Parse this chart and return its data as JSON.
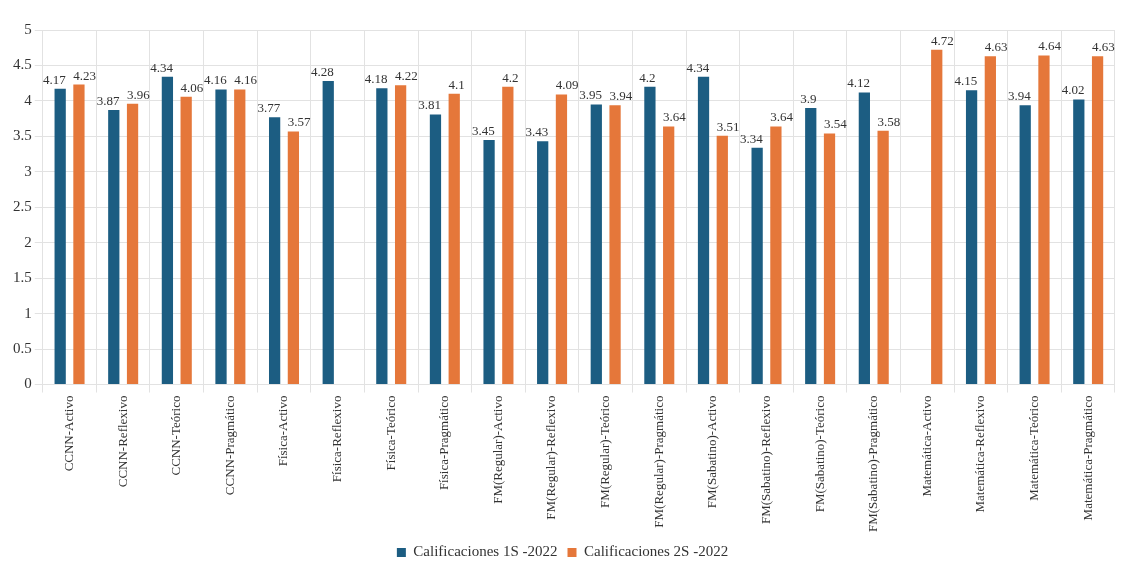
{
  "chart_data": {
    "type": "bar",
    "categories": [
      "CCNN-Activo",
      "CCNN-Reflexivo",
      "CCNN-Teórico",
      "CCNN-Pragmático",
      "Física-Activo",
      "Física-Reflexivo",
      "Física-Teórico",
      "Física-Pragmático",
      "FM(Regular)-Activo",
      "FM(Regular)-Reflexivo",
      "FM(Regular)-Teórico",
      "FM(Regular)-Pragmático",
      "FM(Sabatino)-Activo",
      "FM(Sabatino)-Reflexivo",
      "FM(Sabatino)-Teórico",
      "FM(Sabatino)-Pragmático",
      "Matemática-Activo",
      "Matemática-Reflexivo",
      "Matemática-Teórico",
      "Matemática-Pragmático"
    ],
    "series": [
      {
        "name": "Calificaciones 1S -2022",
        "color": "#1c5d82",
        "values": [
          4.17,
          3.87,
          4.34,
          4.16,
          3.77,
          4.28,
          4.18,
          3.81,
          3.45,
          3.43,
          3.95,
          4.2,
          4.34,
          3.34,
          3.9,
          4.12,
          null,
          4.15,
          3.94,
          4.02
        ]
      },
      {
        "name": "Calificaciones 2S -2022",
        "color": "#e5773a",
        "values": [
          4.23,
          3.96,
          4.06,
          4.16,
          3.57,
          null,
          4.22,
          4.1,
          4.2,
          4.09,
          3.94,
          3.64,
          3.51,
          3.64,
          3.54,
          3.58,
          4.72,
          4.63,
          4.64,
          4.63
        ]
      }
    ],
    "ylim": [
      0,
      5
    ],
    "yticks": [
      0,
      0.5,
      1,
      1.5,
      2,
      2.5,
      3,
      3.5,
      4,
      4.5,
      5
    ],
    "grid": true,
    "legend": "bottom",
    "data_labels": true
  }
}
